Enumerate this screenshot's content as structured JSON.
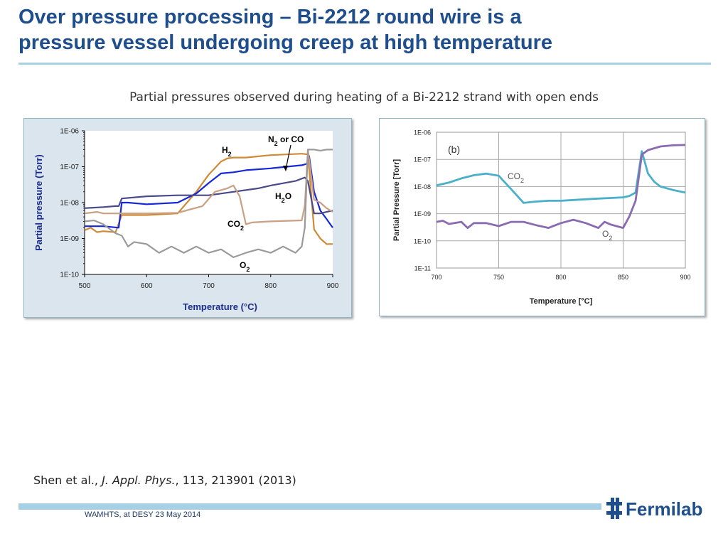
{
  "slide": {
    "title_line1": "Over pressure processing – Bi-2212 round wire is a",
    "title_line2": "pressure vessel undergoing creep at high temperature",
    "subtitle": "Partial pressures observed during heating of a Bi-2212 strand with open ends",
    "citation_authors": "Shen et al., ",
    "citation_journal": "J. Appl. Phys.",
    "citation_rest": ", 113, 213901 (2013)",
    "footer": "WAMHTS, at DESY 23 May 2014",
    "logo_text": "Fermilab"
  },
  "chart_data": [
    {
      "type": "line",
      "xlabel": "Temperature (°C)",
      "ylabel": "Partial pressure (Torr)",
      "yscale": "log",
      "xlim": [
        500,
        900
      ],
      "ylim": [
        1e-10,
        1e-06
      ],
      "x_ticks": [
        "500",
        "600",
        "700",
        "800",
        "900"
      ],
      "y_ticks": [
        "1E-10",
        "1E-09",
        "1E-08",
        "1E-07",
        "1E-06"
      ],
      "annotations": [
        "H2",
        "N2 or CO",
        "H2O",
        "CO2",
        "O2"
      ],
      "series": [
        {
          "name": "H2",
          "color": "#cf8a35",
          "x": [
            500,
            510,
            520,
            530,
            550,
            560,
            600,
            650,
            680,
            700,
            720,
            730,
            740,
            760,
            800,
            850,
            860,
            870,
            880,
            890,
            900
          ],
          "y": [
            1.7e-09,
            2e-09,
            1.5e-09,
            1.6e-09,
            1.5e-09,
            4.5e-09,
            4.5e-09,
            5e-09,
            2e-08,
            6e-08,
            1.4e-07,
            1.7e-07,
            1.8e-07,
            1.8e-07,
            2.1e-07,
            2.3e-07,
            2.2e-07,
            1.8e-09,
            1e-09,
            7e-10,
            7e-10
          ]
        },
        {
          "name": "N2 or CO",
          "color": "#1428d8",
          "x": [
            500,
            530,
            555,
            560,
            570,
            600,
            650,
            680,
            700,
            720,
            740,
            760,
            800,
            850,
            858,
            862,
            870,
            880,
            890,
            900
          ],
          "y": [
            2.2e-09,
            2.2e-09,
            2e-09,
            1e-08,
            1e-08,
            9e-09,
            1e-08,
            1.8e-08,
            3.5e-08,
            6.5e-08,
            7e-08,
            8e-08,
            9e-08,
            1.1e-07,
            1.2e-07,
            2e-07,
            2e-08,
            6e-09,
            3.5e-09,
            2e-09
          ]
        },
        {
          "name": "H2O",
          "color": "#4a4a8a",
          "x": [
            500,
            530,
            550,
            555,
            560,
            600,
            650,
            700,
            740,
            780,
            800,
            840,
            855,
            860,
            870,
            880,
            890,
            900
          ],
          "y": [
            7e-09,
            7.5e-09,
            8e-09,
            8e-09,
            1.3e-08,
            1.5e-08,
            1.6e-08,
            1.6e-08,
            2e-08,
            2.5e-08,
            3e-08,
            4e-08,
            5e-08,
            4e-08,
            5e-09,
            5e-09,
            5.5e-09,
            6e-09
          ]
        },
        {
          "name": "CO2",
          "color": "#c9a083",
          "x": [
            500,
            520,
            530,
            550,
            560,
            600,
            650,
            690,
            710,
            730,
            740,
            750,
            760,
            770,
            800,
            850,
            855,
            860,
            870,
            880,
            890,
            900
          ],
          "y": [
            5e-09,
            5.5e-09,
            5e-09,
            5e-09,
            5e-09,
            5e-09,
            5.2e-09,
            8e-09,
            2e-08,
            2.5e-08,
            3e-08,
            1.5e-08,
            2.5e-09,
            2.8e-09,
            3e-09,
            3.2e-09,
            8e-09,
            3e-07,
            1.2e-08,
            1e-08,
            7e-09,
            5.5e-09
          ]
        },
        {
          "name": "O2",
          "color": "#9a9a9a",
          "x": [
            500,
            515,
            530,
            550,
            560,
            570,
            580,
            600,
            620,
            640,
            660,
            680,
            700,
            720,
            740,
            760,
            780,
            800,
            820,
            840,
            850,
            855,
            860,
            865,
            870,
            880,
            890,
            900
          ],
          "y": [
            3e-09,
            3.2e-09,
            2.5e-09,
            1.4e-09,
            1.2e-09,
            6e-10,
            8e-10,
            7e-10,
            4e-10,
            6e-10,
            4e-10,
            6e-10,
            4e-10,
            5e-10,
            3e-10,
            4e-10,
            5e-10,
            4e-10,
            6e-10,
            4e-10,
            6e-10,
            2e-09,
            3e-07,
            3e-07,
            3e-07,
            2.8e-07,
            3e-07,
            3e-07
          ]
        }
      ]
    },
    {
      "type": "line",
      "panel_label": "(b)",
      "xlabel": "Temperature [°C]",
      "ylabel": "Partial Pressure [Torr]",
      "yscale": "log",
      "grid": true,
      "xlim": [
        700,
        900
      ],
      "ylim": [
        1e-11,
        1e-06
      ],
      "x_ticks": [
        "700",
        "750",
        "800",
        "850",
        "900"
      ],
      "y_ticks": [
        "1E-11",
        "1E-10",
        "1E-09",
        "1E-08",
        "1E-07",
        "1E-06"
      ],
      "series": [
        {
          "name": "CO2",
          "label_sub": "2",
          "color": "#4ab0c8",
          "x": [
            700,
            710,
            720,
            730,
            740,
            750,
            760,
            770,
            780,
            790,
            800,
            810,
            820,
            830,
            840,
            850,
            855,
            860,
            865,
            870,
            875,
            880,
            890,
            900
          ],
          "y": [
            1.1e-08,
            1.4e-08,
            2e-08,
            2.6e-08,
            3e-08,
            2.5e-08,
            8e-09,
            2.5e-09,
            2.8e-09,
            3e-09,
            3e-09,
            3.2e-09,
            3.4e-09,
            3.6e-09,
            3.8e-09,
            4e-09,
            4.5e-09,
            6e-09,
            2e-07,
            3e-08,
            1.5e-08,
            1e-08,
            7.5e-09,
            6e-09
          ]
        },
        {
          "name": "O2",
          "label_sub": "2",
          "color": "#8a6ab0",
          "x": [
            700,
            705,
            710,
            720,
            725,
            730,
            740,
            750,
            760,
            770,
            780,
            790,
            800,
            810,
            820,
            830,
            835,
            840,
            850,
            855,
            860,
            865,
            870,
            880,
            890,
            900
          ],
          "y": [
            5e-10,
            5.5e-10,
            4.2e-10,
            5e-10,
            3e-10,
            4.5e-10,
            4.5e-10,
            3.5e-10,
            5e-10,
            5e-10,
            3.8e-10,
            3e-10,
            4.5e-10,
            6e-10,
            4.5e-10,
            3e-10,
            5e-10,
            4e-10,
            3e-10,
            8e-10,
            3e-09,
            1.5e-07,
            2.2e-07,
            3e-07,
            3.3e-07,
            3.4e-07
          ]
        }
      ]
    }
  ]
}
